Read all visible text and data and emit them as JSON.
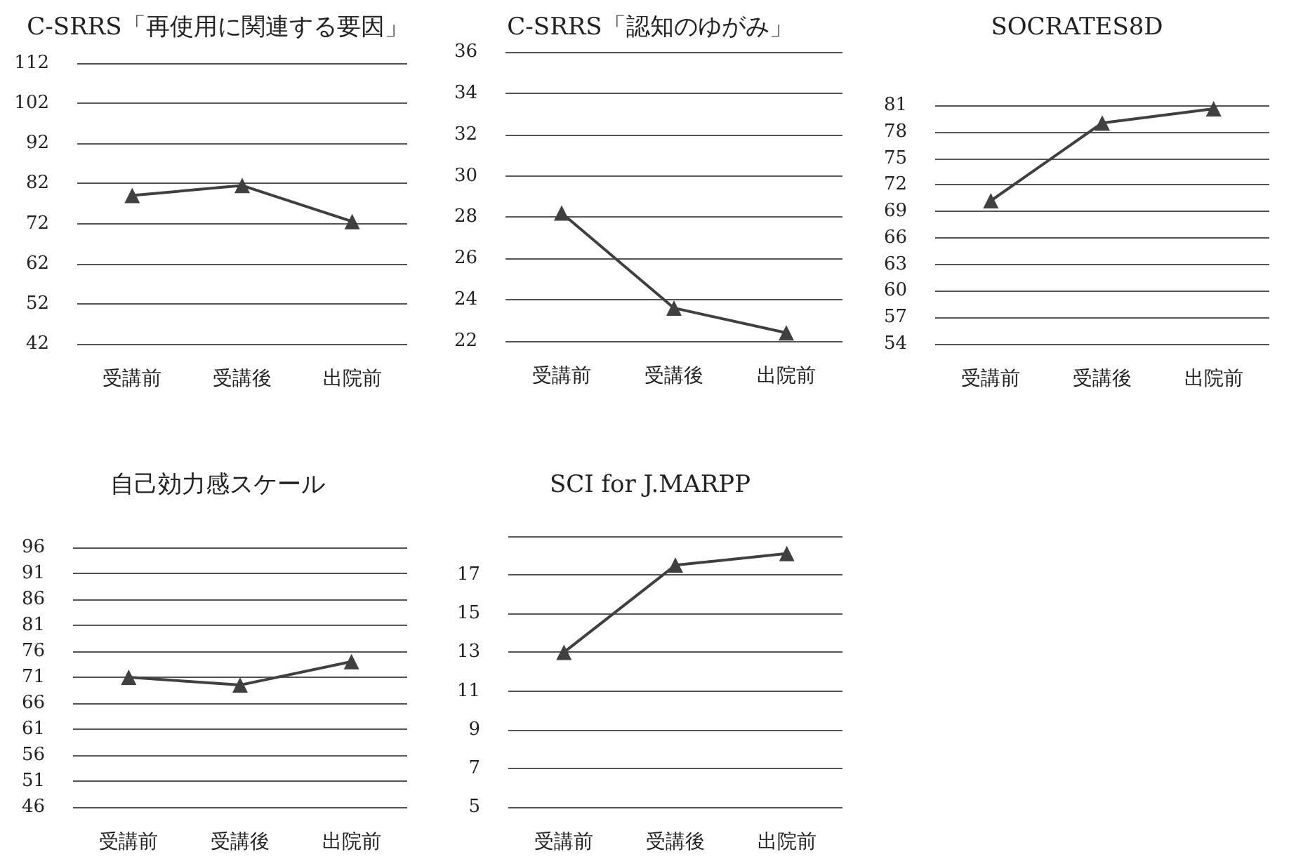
{
  "chart_data": [
    {
      "type": "line",
      "title": "C-SRRS「再使用に関連する要因」",
      "categories": [
        "受講前",
        "受講後",
        "出院前"
      ],
      "series": [
        {
          "color": "#404040",
          "values": [
            79,
            81.5,
            72.5
          ]
        }
      ],
      "ylim": [
        42,
        112
      ],
      "yticks": [
        42,
        52,
        62,
        72,
        82,
        92,
        102,
        112
      ],
      "grid": "y",
      "marker": "triangle"
    },
    {
      "type": "line",
      "title": "C-SRRS「認知のゆがみ」",
      "categories": [
        "受講前",
        "受講後",
        "出院前"
      ],
      "series": [
        {
          "color": "#404040",
          "values": [
            28.2,
            23.6,
            22.4
          ]
        }
      ],
      "ylim": [
        22,
        36
      ],
      "yticks": [
        22,
        24,
        26,
        28,
        30,
        32,
        34,
        36
      ],
      "grid": "y",
      "marker": "triangle"
    },
    {
      "type": "line",
      "title": "SOCRATES8D",
      "categories": [
        "受講前",
        "受講後",
        "出院前"
      ],
      "series": [
        {
          "color": "#404040",
          "values": [
            70.2,
            79.0,
            80.6
          ]
        }
      ],
      "ylim": [
        54,
        81
      ],
      "yticks": [
        54,
        57,
        60,
        63,
        66,
        69,
        72,
        75,
        78,
        81
      ],
      "grid": "y",
      "marker": "triangle"
    },
    {
      "type": "line",
      "title": "自己効力感スケール",
      "categories": [
        "受講前",
        "受講後",
        "出院前"
      ],
      "series": [
        {
          "color": "#404040",
          "values": [
            71,
            69.5,
            74
          ]
        }
      ],
      "ylim": [
        46,
        96
      ],
      "yticks": [
        46,
        51,
        56,
        61,
        66,
        71,
        76,
        81,
        86,
        91,
        96
      ],
      "grid": "y",
      "marker": "triangle"
    },
    {
      "type": "line",
      "title": "SCI for J.MARPP",
      "categories": [
        "受講前",
        "受講後",
        "出院前"
      ],
      "series": [
        {
          "color": "#404040",
          "values": [
            13,
            17.5,
            18.1
          ]
        }
      ],
      "ylim": [
        5,
        19
      ],
      "yticks": [
        5,
        7,
        9,
        11,
        13,
        15,
        17,
        {
          "value": 19,
          "label": null
        }
      ],
      "grid": "y",
      "marker": "triangle"
    }
  ]
}
